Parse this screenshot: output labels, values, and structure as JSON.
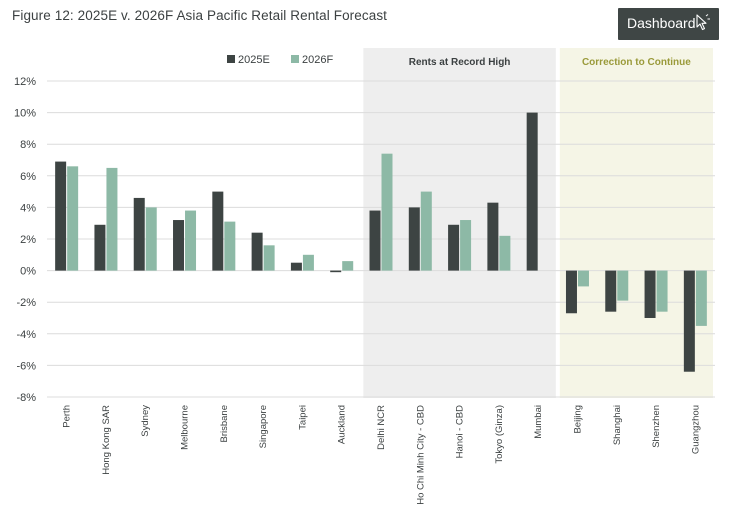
{
  "figure": {
    "title": "Figure 12: 2025E v. 2026F Asia Pacific Retail Rental Forecast"
  },
  "toolbar": {
    "dashboard_label": "Dashboard",
    "cursor_icon": "cursor-arrow-icon"
  },
  "colors": {
    "series_2025": "#3d4443",
    "series_2026": "#8db9a6",
    "band_record": "#eeeeee",
    "band_correction": "#f5f5e6",
    "band_record_text": "#3c4142",
    "band_correction_text": "#9a9a3a",
    "grid": "#dcdcdc",
    "button_bg": "#3f4645"
  },
  "chart_data": {
    "type": "bar",
    "categories": [
      "Perth",
      "Hong Kong SAR",
      "Sydney",
      "Melbourne",
      "Brisbane",
      "Singapore",
      "Taipei",
      "Auckland",
      "Delhi NCR",
      "Ho Chi Minh City - CBD",
      "Hanoi - CBD",
      "Tokyo (Ginza)",
      "Mumbai",
      "Beijing",
      "Shanghai",
      "Shenzhen",
      "Guangzhou"
    ],
    "series": [
      {
        "name": "2025E",
        "values": [
          6.9,
          2.9,
          4.6,
          3.2,
          5.0,
          2.4,
          0.5,
          -0.1,
          3.8,
          4.0,
          2.9,
          4.3,
          10.0,
          -2.7,
          -2.6,
          -3.0,
          -6.4
        ]
      },
      {
        "name": "2026F",
        "values": [
          6.6,
          6.5,
          4.0,
          3.8,
          3.1,
          1.6,
          1.0,
          0.6,
          7.4,
          5.0,
          3.2,
          2.2,
          null,
          -1.0,
          -1.9,
          -2.6,
          -3.5
        ]
      }
    ],
    "ylim": [
      -8,
      12
    ],
    "yticks": [
      "-8%",
      "-6%",
      "-4%",
      "-2%",
      "0%",
      "2%",
      "4%",
      "6%",
      "8%",
      "10%",
      "12%"
    ],
    "ytick_values": [
      -8,
      -6,
      -4,
      -2,
      0,
      2,
      4,
      6,
      8,
      10,
      12
    ],
    "grid": true,
    "legend_position": "top",
    "bands": [
      {
        "label": "Rents at Record High",
        "from_category": 8,
        "to_category": 12
      },
      {
        "label": "Correction to Continue",
        "from_category": 13,
        "to_category": 16
      }
    ]
  }
}
